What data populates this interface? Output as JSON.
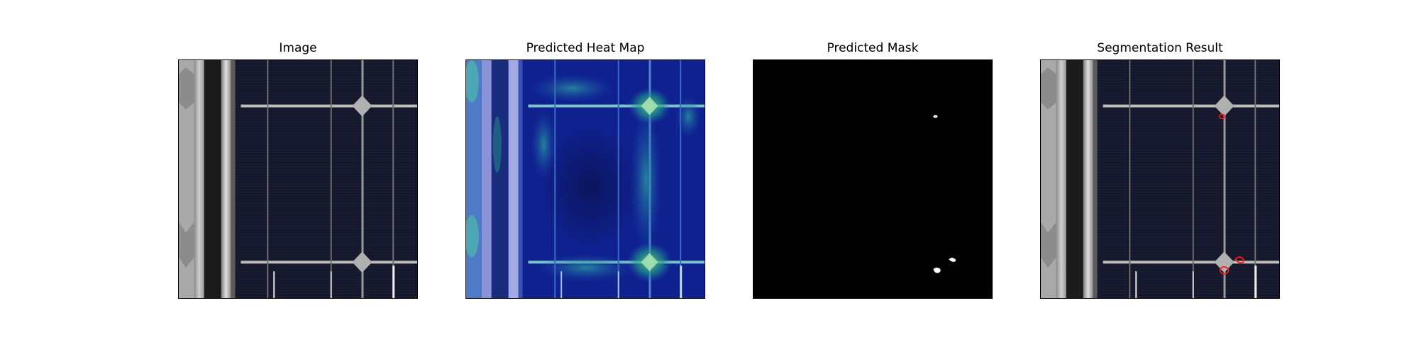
{
  "panels": [
    {
      "title": "Image"
    },
    {
      "title": "Predicted Heat Map"
    },
    {
      "title": "Predicted Mask"
    },
    {
      "title": "Segmentation Result"
    }
  ],
  "colors": {
    "background": "#ffffff",
    "cell_dark": "#14172a",
    "frame_silver": "#b9b9b9",
    "busbar_light": "#c8c8c8",
    "heatmap_base": "#0d1f8f",
    "heatmap_hot": "#2fb87a",
    "mask_background": "#000000",
    "mask_foreground": "#ffffff",
    "contour_red": "#ff1a1a"
  }
}
